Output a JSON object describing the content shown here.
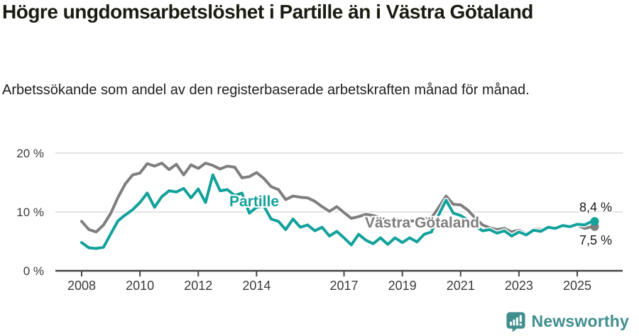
{
  "header": {
    "title": "Högre ungdomsarbetslöshet i Partille än i Västra Götaland",
    "subtitle": "Arbetssökande som andel av den registerbaserade arbetskraften månad för månad."
  },
  "chart_data": {
    "type": "line",
    "title": "",
    "xlabel": "",
    "ylabel": "",
    "ylim": [
      0,
      20
    ],
    "grid": "horizontal",
    "legend": "inline-labels",
    "yticks": [
      {
        "value": 0,
        "label": "0 %"
      },
      {
        "value": 10,
        "label": "10 %"
      },
      {
        "value": 20,
        "label": "20 %"
      }
    ],
    "xticks": [
      2008,
      2010,
      2012,
      2014,
      2017,
      2019,
      2021,
      2023,
      2025
    ],
    "x": [
      2008.0,
      2008.25,
      2008.5,
      2008.75,
      2009.0,
      2009.25,
      2009.5,
      2009.75,
      2010.0,
      2010.25,
      2010.5,
      2010.75,
      2011.0,
      2011.25,
      2011.5,
      2011.75,
      2012.0,
      2012.25,
      2012.5,
      2012.75,
      2013.0,
      2013.25,
      2013.5,
      2013.75,
      2014.0,
      2014.25,
      2014.5,
      2014.75,
      2015.0,
      2015.25,
      2015.5,
      2015.75,
      2016.0,
      2016.25,
      2016.5,
      2016.75,
      2017.0,
      2017.25,
      2017.5,
      2017.75,
      2018.0,
      2018.25,
      2018.5,
      2018.75,
      2019.0,
      2019.25,
      2019.5,
      2019.75,
      2020.0,
      2020.25,
      2020.5,
      2020.75,
      2021.0,
      2021.25,
      2021.5,
      2021.75,
      2022.0,
      2022.25,
      2022.5,
      2022.75,
      2023.0,
      2023.25,
      2023.5,
      2023.75,
      2024.0,
      2024.25,
      2024.5,
      2024.75,
      2025.0,
      2025.25,
      2025.5
    ],
    "series": [
      {
        "name": "Västra Götaland",
        "color": "#7e7e7e",
        "end_label": "7,5 %",
        "end_value": 7.5,
        "values": [
          8.4,
          7.0,
          6.6,
          7.8,
          9.8,
          12.5,
          14.8,
          16.3,
          16.6,
          18.2,
          17.8,
          18.3,
          17.2,
          18.1,
          16.3,
          18.0,
          17.4,
          18.3,
          17.9,
          17.3,
          17.8,
          17.6,
          15.8,
          16.0,
          16.7,
          15.7,
          14.3,
          13.8,
          12.1,
          12.7,
          12.5,
          12.4,
          11.8,
          10.9,
          10.1,
          10.9,
          9.9,
          8.9,
          9.2,
          9.6,
          9.4,
          9.0,
          8.5,
          8.8,
          8.7,
          8.5,
          8.4,
          8.8,
          9.0,
          10.8,
          12.7,
          11.3,
          11.2,
          10.3,
          9.0,
          7.8,
          7.3,
          7.0,
          7.2,
          6.6,
          6.9,
          6.3,
          7.1,
          7.0,
          7.4,
          7.3,
          7.8,
          7.4,
          7.8,
          7.2,
          7.5
        ]
      },
      {
        "name": "Partille",
        "color": "#12a19b",
        "end_label": "8,4 %",
        "end_value": 8.4,
        "values": [
          4.8,
          3.9,
          3.8,
          4.0,
          6.3,
          8.5,
          9.5,
          10.4,
          11.6,
          13.2,
          10.8,
          12.6,
          13.6,
          13.4,
          14.0,
          12.4,
          13.9,
          11.6,
          16.3,
          13.6,
          13.8,
          12.8,
          13.2,
          9.8,
          10.8,
          11.0,
          8.8,
          8.4,
          7.0,
          8.8,
          7.4,
          7.8,
          6.8,
          7.4,
          5.9,
          6.7,
          5.6,
          4.4,
          6.2,
          5.2,
          4.6,
          5.6,
          4.5,
          5.6,
          4.8,
          5.6,
          4.9,
          6.2,
          6.6,
          9.5,
          12.0,
          9.8,
          9.4,
          8.6,
          7.6,
          6.8,
          7.0,
          6.4,
          6.8,
          5.9,
          6.6,
          6.1,
          6.9,
          6.7,
          7.4,
          7.2,
          7.7,
          7.5,
          7.9,
          7.8,
          8.4
        ]
      }
    ]
  },
  "footer": {
    "brand": "Newsworthy",
    "logo_icon": "newsworthy-speech-bubble-bars-icon",
    "brand_color": "#3f8e8d"
  },
  "colors": {
    "partille_line": "#12a19b",
    "vastra_gotaland_line": "#7e7e7e",
    "gridline": "#dcdcdc",
    "axis": "#454545",
    "tick_label": "#3a3a3a",
    "end_label_text": "#1a1a1a",
    "background": "#ffffff"
  }
}
